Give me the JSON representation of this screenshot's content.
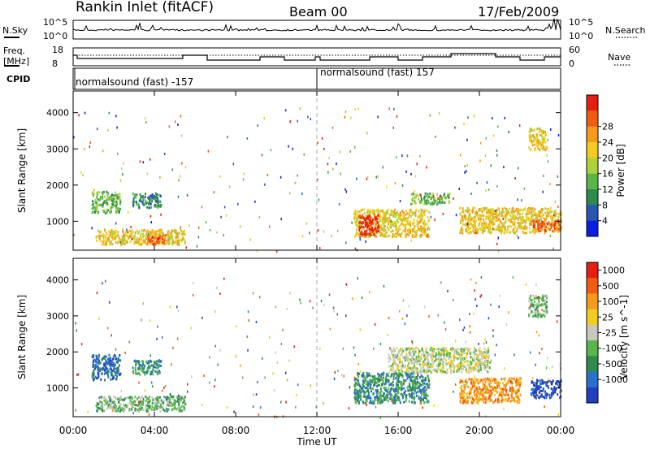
{
  "header": {
    "station": "Rankin Inlet (fitACF)",
    "beam": "Beam 00",
    "date": "17/Feb/2009"
  },
  "top_panel": {
    "left_label": "N.Sky",
    "left_ticks": [
      "10^5",
      "10^0"
    ],
    "right_label": "N.Search",
    "right_ticks": [
      "10^5",
      "10^0"
    ]
  },
  "freq_panel": {
    "left_label_1": "Freq.",
    "left_label_2": "[MHz]",
    "left_ticks": [
      "18",
      "8"
    ],
    "right_label": "Nave",
    "right_ticks": [
      "60",
      "0"
    ]
  },
  "cpid_panel": {
    "label": "CPID",
    "entries": [
      {
        "text": "normalsound (fast) -157",
        "start_hour": 0
      },
      {
        "text": "normalsound (fast) 157",
        "start_hour": 12
      }
    ]
  },
  "chart_data": [
    {
      "type": "heatmap",
      "parameter": "Power",
      "ylabel": "Slant Range [km]",
      "yticks": [
        1000,
        2000,
        3000,
        4000
      ],
      "ylim": [
        200,
        4600
      ],
      "xlim": [
        0,
        24
      ],
      "colorbar_label": "Power [dB]",
      "colorbar_ticks": [
        "4",
        "8",
        "12",
        "16",
        "20",
        "24",
        "28"
      ],
      "colorbar_colors": [
        "#0a1ee0",
        "#2a55b0",
        "#2f8a50",
        "#58b64a",
        "#aed23c",
        "#f2cc1e",
        "#f59a1a",
        "#f05c10",
        "#e62010"
      ],
      "regions": [
        {
          "x": [
            0.9,
            2.3
          ],
          "y": [
            1250,
            1850
          ],
          "level": 3
        },
        {
          "x": [
            2.9,
            4.3
          ],
          "y": [
            1400,
            1800
          ],
          "level": 2
        },
        {
          "x": [
            1.1,
            5.5
          ],
          "y": [
            380,
            800
          ],
          "level": 5
        },
        {
          "x": [
            3.6,
            4.6
          ],
          "y": [
            380,
            650
          ],
          "level": 7
        },
        {
          "x": [
            13.8,
            17.5
          ],
          "y": [
            600,
            1350
          ],
          "level": 5
        },
        {
          "x": [
            14.0,
            15.0
          ],
          "y": [
            650,
            1200
          ],
          "level": 8
        },
        {
          "x": [
            16.6,
            18.5
          ],
          "y": [
            1500,
            1800
          ],
          "level": 3
        },
        {
          "x": [
            19.0,
            24.0
          ],
          "y": [
            700,
            1400
          ],
          "level": 5
        },
        {
          "x": [
            22.6,
            24.0
          ],
          "y": [
            750,
            1050
          ],
          "level": 7
        },
        {
          "x": [
            22.4,
            23.3
          ],
          "y": [
            3000,
            3600
          ],
          "level": 5
        }
      ]
    },
    {
      "type": "heatmap",
      "parameter": "Velocity",
      "ylabel": "Slant Range [km]",
      "yticks": [
        1000,
        2000,
        3000,
        4000
      ],
      "ylim": [
        200,
        4600
      ],
      "xlim": [
        0,
        24
      ],
      "colorbar_label": "Velocity [m s^-1]",
      "colorbar_ticks": [
        "1000",
        "500",
        "100",
        "25",
        "-25",
        "-100",
        "-500",
        "-1000"
      ],
      "colorbar_colors": [
        "#2040c0",
        "#2a70c8",
        "#2f8a50",
        "#58b64a",
        "#c8c8c0",
        "#f2cc1e",
        "#f59a1a",
        "#f05c10",
        "#e62010"
      ],
      "regions": [
        {
          "x": [
            0.9,
            2.3
          ],
          "y": [
            1250,
            1950
          ],
          "level": 1
        },
        {
          "x": [
            2.9,
            4.3
          ],
          "y": [
            1400,
            1800
          ],
          "level": 2
        },
        {
          "x": [
            1.1,
            5.5
          ],
          "y": [
            380,
            800
          ],
          "level": 3
        },
        {
          "x": [
            13.8,
            17.5
          ],
          "y": [
            600,
            1450
          ],
          "level": 2
        },
        {
          "x": [
            15.5,
            20.5
          ],
          "y": [
            1450,
            2150
          ],
          "level": 4
        },
        {
          "x": [
            19.0,
            22.0
          ],
          "y": [
            600,
            1300
          ],
          "level": 6
        },
        {
          "x": [
            22.5,
            24.0
          ],
          "y": [
            750,
            1250
          ],
          "level": 0
        },
        {
          "x": [
            22.4,
            23.3
          ],
          "y": [
            3000,
            3600
          ],
          "level": 3
        }
      ]
    }
  ],
  "xaxis": {
    "ticks": [
      "00:00",
      "04:00",
      "08:00",
      "12:00",
      "16:00",
      "20:00",
      "00:00"
    ],
    "label": "Time UT"
  }
}
